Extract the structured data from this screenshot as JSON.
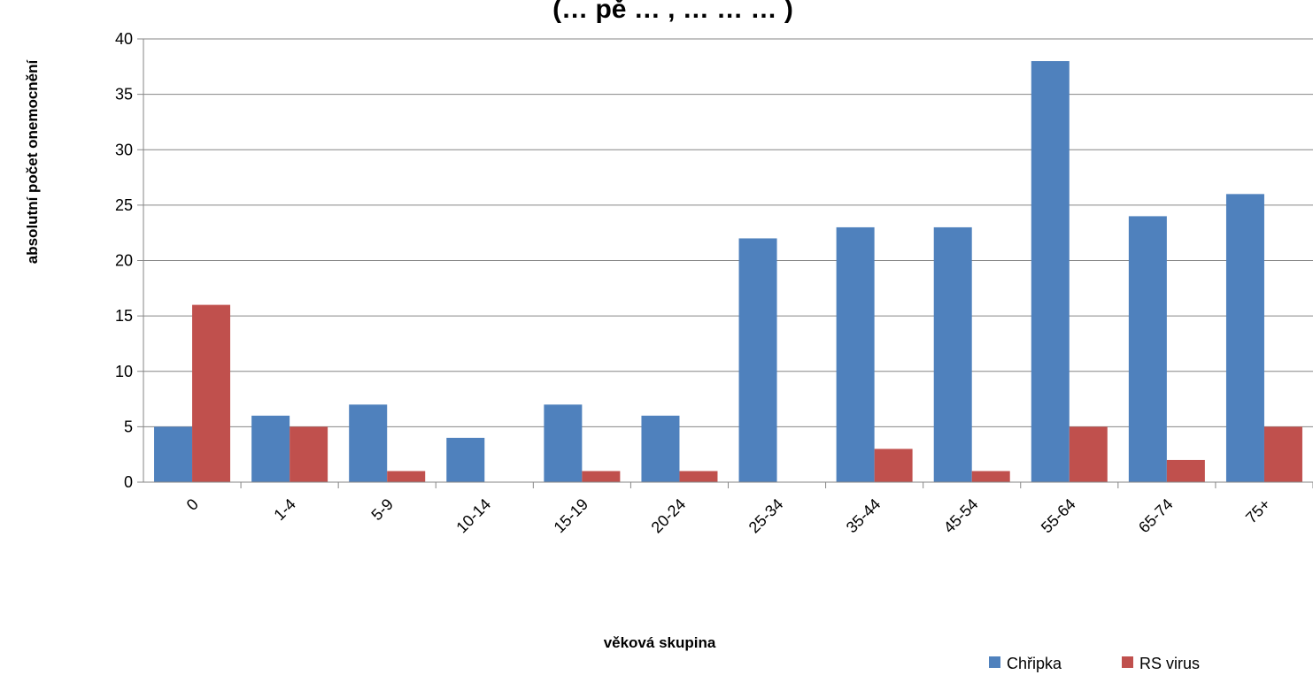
{
  "chart_data": {
    "type": "bar",
    "title": "(… pě … , … … … )",
    "xlabel": "věková skupina",
    "ylabel": "absolutní počet onemocnění",
    "categories": [
      "0",
      "1-4",
      "5-9",
      "10-14",
      "15-19",
      "20-24",
      "25-34",
      "35-44",
      "45-54",
      "55-64",
      "65-74",
      "75+"
    ],
    "series": [
      {
        "name": "Chřipka",
        "color": "#4F81BD",
        "values": [
          5,
          6,
          7,
          4,
          7,
          6,
          22,
          23,
          23,
          38,
          24,
          26
        ]
      },
      {
        "name": "RS virus",
        "color": "#C0504D",
        "values": [
          16,
          5,
          1,
          0,
          1,
          1,
          0,
          3,
          1,
          5,
          2,
          5
        ]
      }
    ],
    "ylim": [
      0,
      40
    ],
    "yticks": [
      0,
      5,
      10,
      15,
      20,
      25,
      30,
      35,
      40
    ],
    "grid": true,
    "legend_position": "bottom-right"
  }
}
